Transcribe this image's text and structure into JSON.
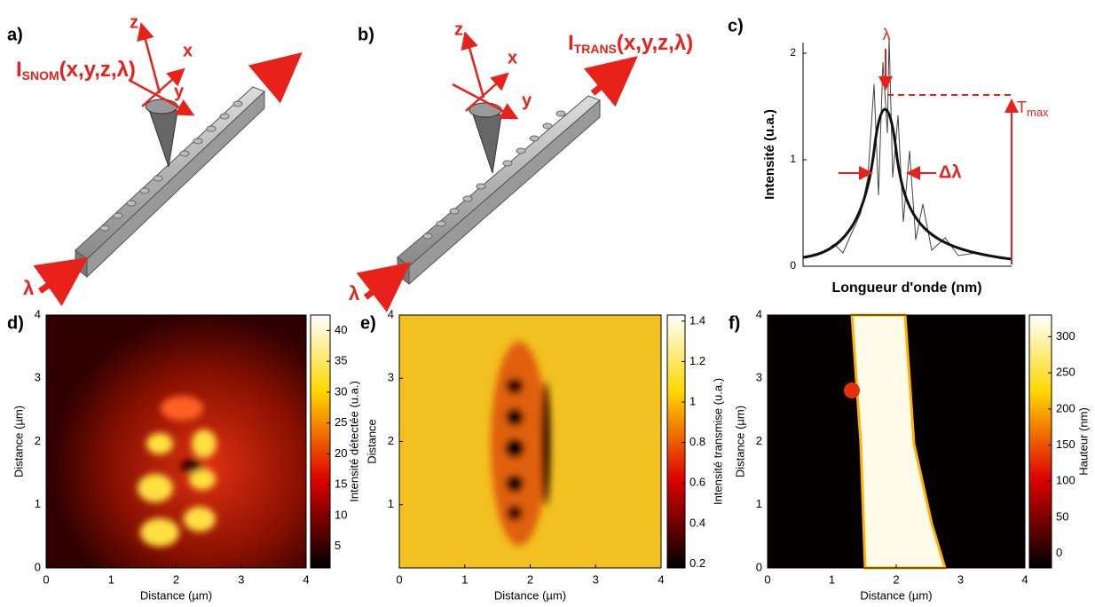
{
  "panel_a": {
    "label": "a)",
    "signal": "I",
    "signal_sub": "SNOM",
    "signal_args": "(x,y,z,λ)",
    "axes": [
      "z",
      "x",
      "y"
    ],
    "input": "λ"
  },
  "panel_b": {
    "label": "b)",
    "signal": "I",
    "signal_sub": "TRANS",
    "signal_args": "(x,y,z,λ)",
    "axes": [
      "z",
      "x",
      "y"
    ],
    "input": "λ"
  },
  "panel_c": {
    "label": "c)",
    "ylabel": "Intensité (u.a.)",
    "xlabel": "Longueur d'onde (nm)",
    "ylim": [
      0,
      2.1
    ],
    "yticks": [
      0,
      1,
      2
    ],
    "peak": "λ",
    "tmax": "T",
    "tmax_sub": "max",
    "width": "Δλ"
  },
  "panel_d": {
    "label": "d)",
    "xlabel": "Distance (µm)",
    "ylabel": "Distance (µm)",
    "xlim": [
      0,
      4
    ],
    "ylim": [
      0,
      4
    ],
    "xticks": [
      0,
      1,
      2,
      3,
      4
    ],
    "yticks": [
      0,
      1,
      2,
      3,
      4
    ],
    "colorbar": {
      "label": "Intensité détectée (u.a.)",
      "lim": [
        1.5,
        42.5
      ],
      "ticks": [
        5,
        10,
        15,
        20,
        25,
        30,
        35,
        40
      ]
    }
  },
  "panel_e": {
    "label": "e)",
    "xlabel": "Distance (µm)",
    "ylabel": "Distance",
    "xlim": [
      0,
      4
    ],
    "ylim": [
      0,
      4
    ],
    "xticks": [
      0,
      1,
      2,
      3,
      4
    ],
    "yticks": [
      1,
      2,
      3,
      4
    ],
    "colorbar": {
      "label": "Intensité transmise (u.a.)",
      "lim": [
        0.18,
        1.43
      ],
      "ticks": [
        0.2,
        0.4,
        0.6,
        0.8,
        1,
        1.2,
        1.4
      ]
    }
  },
  "panel_f": {
    "label": "f)",
    "xlabel": "Distance (µm)",
    "ylabel": "Distance (µm)",
    "xlim": [
      0,
      4
    ],
    "ylim": [
      0,
      4
    ],
    "xticks": [
      0,
      1,
      2,
      3,
      4
    ],
    "yticks": [
      0,
      1,
      2,
      3,
      4
    ],
    "colorbar": {
      "label": "Hauteur (nm)",
      "lim": [
        -20,
        330
      ],
      "ticks": [
        0,
        50,
        100,
        150,
        200,
        250,
        300
      ]
    }
  }
}
